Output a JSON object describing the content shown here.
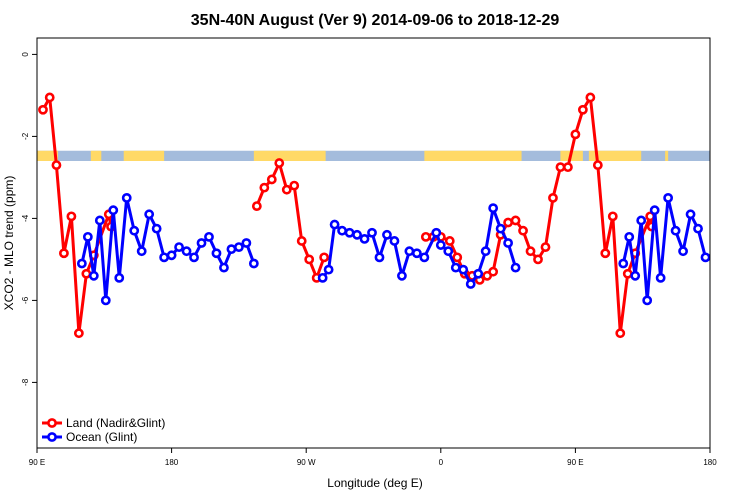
{
  "chart_data": {
    "type": "line",
    "title": "35N-40N August (Ver 9)   2014-09-06 to 2018-12-29",
    "xlabel": "Longitude (deg E)",
    "ylabel": "XCO2 - MLO trend (ppm)",
    "xlim": [
      90,
      540
    ],
    "ylim": [
      -9.6,
      0.4
    ],
    "x_ticks": [
      {
        "value": 90,
        "label": "90 E"
      },
      {
        "value": 180,
        "label": "180"
      },
      {
        "value": 270,
        "label": "90 W"
      },
      {
        "value": 360,
        "label": "0"
      },
      {
        "value": 450,
        "label": "90 E"
      },
      {
        "value": 540,
        "label": "180"
      }
    ],
    "y_ticks": [
      {
        "value": 0,
        "label": "0"
      },
      {
        "value": -2,
        "label": "-2"
      },
      {
        "value": -4,
        "label": "-4"
      },
      {
        "value": -6,
        "label": "-6"
      },
      {
        "value": -8,
        "label": "-8"
      }
    ],
    "land_ocean_band": {
      "y_range": [
        -2.35,
        -2.6
      ],
      "land_color": "#FFD966",
      "ocean_color": "#A4BCDC",
      "land_segments": [
        [
          90,
          104
        ],
        [
          126,
          133
        ],
        [
          148,
          175
        ],
        [
          235,
          283
        ],
        [
          349,
          414
        ],
        [
          440,
          455
        ],
        [
          459,
          494
        ],
        [
          510,
          512
        ]
      ]
    },
    "legend": {
      "position": "bottom-left",
      "entries": [
        {
          "label": "Land (Nadir&Glint)",
          "color": "#FF0000"
        },
        {
          "label": "Ocean (Glint)",
          "color": "#0000FF"
        }
      ]
    },
    "series": [
      {
        "name": "Land (Nadir&Glint)",
        "color": "#FF0000",
        "segments": [
          [
            [
              94,
              -1.35
            ],
            [
              98.5,
              -1.05
            ],
            [
              103,
              -2.7
            ],
            [
              108,
              -4.85
            ],
            [
              113,
              -3.95
            ],
            [
              118,
              -6.8
            ],
            [
              123,
              -5.35
            ],
            [
              128,
              -4.9
            ],
            [
              138,
              -3.9
            ],
            [
              139.5,
              -4.2
            ]
          ],
          [
            [
              237,
              -3.7
            ],
            [
              242,
              -3.25
            ],
            [
              247,
              -3.05
            ],
            [
              252,
              -2.65
            ],
            [
              257,
              -3.3
            ],
            [
              262,
              -3.2
            ],
            [
              267,
              -4.55
            ],
            [
              272,
              -5.0
            ],
            [
              277,
              -5.45
            ],
            [
              282,
              -4.95
            ]
          ],
          [
            [
              350,
              -4.45
            ],
            [
              355,
              -4.45
            ],
            [
              360,
              -4.45
            ],
            [
              366,
              -4.55
            ],
            [
              371,
              -4.95
            ],
            [
              376,
              -5.35
            ],
            [
              381,
              -5.4
            ],
            [
              386,
              -5.5
            ],
            [
              391,
              -5.4
            ],
            [
              395,
              -5.3
            ],
            [
              400,
              -4.4
            ],
            [
              405,
              -4.1
            ],
            [
              410,
              -4.05
            ],
            [
              415,
              -4.3
            ],
            [
              420,
              -4.8
            ],
            [
              425,
              -5.0
            ],
            [
              430,
              -4.7
            ],
            [
              435,
              -3.5
            ],
            [
              440,
              -2.75
            ],
            [
              445,
              -2.75
            ],
            [
              450,
              -1.95
            ],
            [
              455,
              -1.35
            ],
            [
              460,
              -1.05
            ],
            [
              465,
              -2.7
            ],
            [
              470,
              -4.85
            ],
            [
              475,
              -3.95
            ],
            [
              480,
              -6.8
            ],
            [
              485,
              -5.35
            ],
            [
              490,
              -4.85
            ],
            [
              500,
              -3.95
            ],
            [
              501,
              -4.2
            ]
          ]
        ]
      },
      {
        "name": "Ocean (Glint)",
        "color": "#0000FF",
        "segments": [
          [
            [
              120,
              -5.1
            ],
            [
              124,
              -4.45
            ],
            [
              128,
              -5.4
            ],
            [
              132,
              -4.05
            ],
            [
              136,
              -6.0
            ],
            [
              141,
              -3.8
            ],
            [
              145,
              -5.45
            ],
            [
              150,
              -3.5
            ],
            [
              155,
              -4.3
            ],
            [
              160,
              -4.8
            ],
            [
              165,
              -3.9
            ],
            [
              170,
              -4.25
            ],
            [
              175,
              -4.95
            ],
            [
              180,
              -4.9
            ],
            [
              185,
              -4.7
            ],
            [
              190,
              -4.8
            ],
            [
              195,
              -4.95
            ],
            [
              200,
              -4.6
            ],
            [
              205,
              -4.45
            ],
            [
              210,
              -4.85
            ],
            [
              215,
              -5.2
            ],
            [
              220,
              -4.75
            ],
            [
              225,
              -4.7
            ],
            [
              230,
              -4.6
            ],
            [
              235,
              -5.1
            ]
          ],
          [
            [
              281,
              -5.45
            ],
            [
              285,
              -5.25
            ],
            [
              289,
              -4.15
            ],
            [
              294,
              -4.3
            ],
            [
              299,
              -4.35
            ],
            [
              304,
              -4.4
            ],
            [
              309,
              -4.5
            ],
            [
              314,
              -4.35
            ],
            [
              319,
              -4.95
            ],
            [
              324,
              -4.4
            ],
            [
              329,
              -4.55
            ],
            [
              334,
              -5.4
            ],
            [
              339,
              -4.8
            ],
            [
              344,
              -4.85
            ],
            [
              349,
              -4.95
            ],
            [
              357,
              -4.35
            ],
            [
              360,
              -4.65
            ],
            [
              365,
              -4.8
            ],
            [
              370,
              -5.2
            ],
            [
              375,
              -5.25
            ],
            [
              380,
              -5.6
            ],
            [
              385,
              -5.35
            ],
            [
              390,
              -4.8
            ],
            [
              395,
              -3.75
            ],
            [
              400,
              -4.25
            ],
            [
              405,
              -4.6
            ],
            [
              410,
              -5.2
            ]
          ],
          [
            [
              482,
              -5.1
            ],
            [
              486,
              -4.45
            ],
            [
              490,
              -5.4
            ],
            [
              494,
              -4.05
            ],
            [
              498,
              -6.0
            ],
            [
              503,
              -3.8
            ],
            [
              507,
              -5.45
            ],
            [
              512,
              -3.5
            ],
            [
              517,
              -4.3
            ],
            [
              522,
              -4.8
            ],
            [
              527,
              -3.9
            ],
            [
              532,
              -4.25
            ],
            [
              537,
              -4.95
            ]
          ]
        ]
      }
    ]
  }
}
